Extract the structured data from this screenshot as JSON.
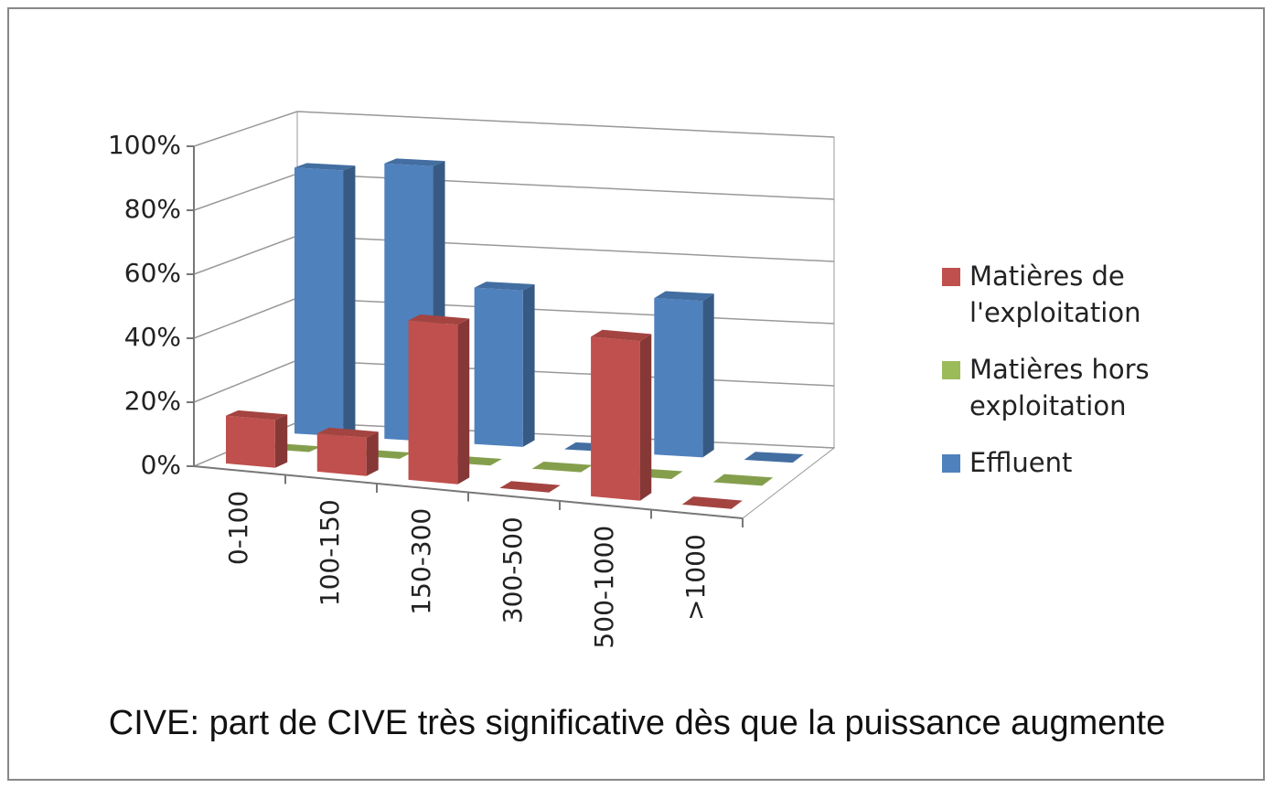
{
  "chart_data": {
    "type": "bar3d",
    "categories": [
      "0-100",
      "100-150",
      "150-300",
      "300-500",
      "500-1000",
      ">1000"
    ],
    "series": [
      {
        "name": "Matières de l'exploitation",
        "color": "#c0504d",
        "values": [
          15,
          12,
          50,
          0,
          50,
          0
        ]
      },
      {
        "name": "Matières hors exploitation",
        "color": "#9bbb59",
        "values": [
          0,
          0,
          0,
          0,
          0,
          0
        ]
      },
      {
        "name": "Effluent",
        "color": "#4f81bd",
        "values": [
          85,
          88,
          50,
          0,
          50,
          0
        ]
      }
    ],
    "ylim": [
      0,
      100
    ],
    "yticks": [
      {
        "value": 0,
        "label": "0%"
      },
      {
        "value": 20,
        "label": "20%"
      },
      {
        "value": 40,
        "label": "40%"
      },
      {
        "value": 60,
        "label": "60%"
      },
      {
        "value": 80,
        "label": "80%"
      },
      {
        "value": 100,
        "label": "100%"
      }
    ],
    "grid": true,
    "legend": "right",
    "caption": "CIVE: part de CIVE très significative dès que la puissance augmente"
  }
}
